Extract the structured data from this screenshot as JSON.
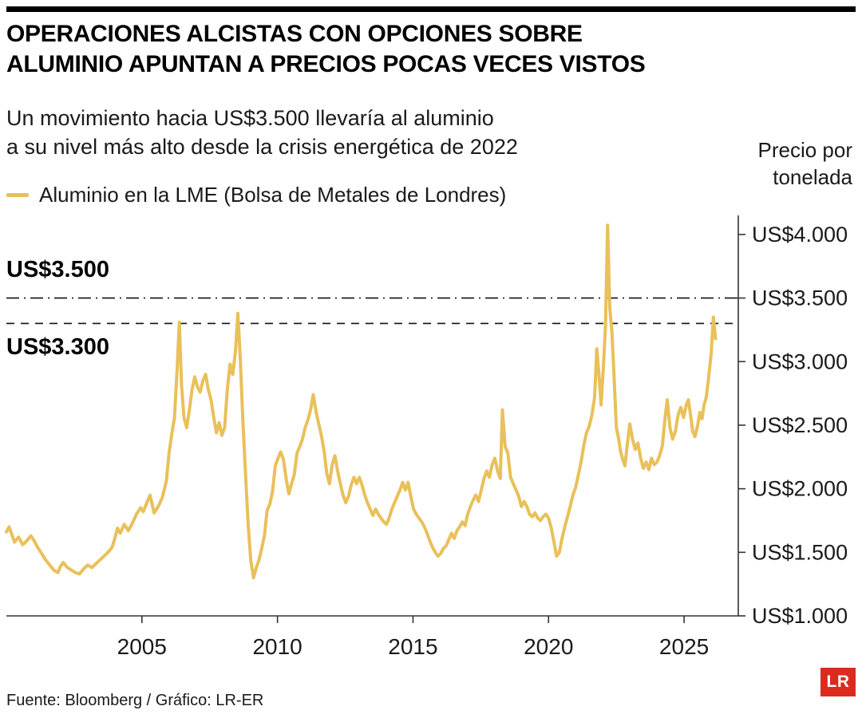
{
  "header": {
    "title": "OPERACIONES ALCISTAS CON OPCIONES SOBRE\nALUMINIO APUNTAN A PRECIOS POCAS VECES VISTOS",
    "subtitle": "Un movimiento hacia US$3.500 llevaría al aluminio\na su nivel más alto desde la crisis energética de 2022"
  },
  "legend": {
    "label": "Aluminio en la LME (Bolsa de Metales de Londres)",
    "color": "#E9C05A"
  },
  "footer": {
    "source": "Fuente: Bloomberg / Gráfico: LR-ER",
    "logo": "LR",
    "logo_color": "#DD2A1F"
  },
  "chart_data": {
    "type": "line",
    "title": "Operaciones alcistas con opciones sobre aluminio apuntan a precios pocas veces vistos",
    "xlabel": "",
    "ylabel": "Precio por\ntonelada",
    "xlim": [
      2000,
      2027
    ],
    "ylim": [
      1000,
      4150
    ],
    "grid": false,
    "legend_position": "top-left",
    "x_ticks": [
      {
        "value": 2005,
        "label": "2005"
      },
      {
        "value": 2010,
        "label": "2010"
      },
      {
        "value": 2015,
        "label": "2015"
      },
      {
        "value": 2020,
        "label": "2020"
      },
      {
        "value": 2025,
        "label": "2025"
      }
    ],
    "y_ticks": [
      {
        "value": 4000,
        "label": "US$4.000"
      },
      {
        "value": 3500,
        "label": "US$3.500"
      },
      {
        "value": 3000,
        "label": "US$3.000"
      },
      {
        "value": 2500,
        "label": "US$2.500"
      },
      {
        "value": 2000,
        "label": "US$2.000"
      },
      {
        "value": 1500,
        "label": "US$1.500"
      },
      {
        "value": 1000,
        "label": "US$1.000"
      }
    ],
    "ref_lines": [
      {
        "value": 3500,
        "label": "US$3.500",
        "style": "dashdot"
      },
      {
        "value": 3300,
        "label": "US$3.300",
        "style": "dashed"
      }
    ],
    "series": [
      {
        "name": "Aluminio en la LME",
        "color": "#E9C05A",
        "points": [
          [
            2000.0,
            1660
          ],
          [
            2000.1,
            1700
          ],
          [
            2000.2,
            1640
          ],
          [
            2000.3,
            1580
          ],
          [
            2000.45,
            1620
          ],
          [
            2000.6,
            1560
          ],
          [
            2000.75,
            1590
          ],
          [
            2000.9,
            1630
          ],
          [
            2001.0,
            1600
          ],
          [
            2001.15,
            1540
          ],
          [
            2001.3,
            1490
          ],
          [
            2001.45,
            1440
          ],
          [
            2001.6,
            1400
          ],
          [
            2001.75,
            1360
          ],
          [
            2001.9,
            1340
          ],
          [
            2002.0,
            1390
          ],
          [
            2002.1,
            1420
          ],
          [
            2002.25,
            1380
          ],
          [
            2002.4,
            1360
          ],
          [
            2002.55,
            1340
          ],
          [
            2002.7,
            1330
          ],
          [
            2002.85,
            1370
          ],
          [
            2003.0,
            1400
          ],
          [
            2003.15,
            1380
          ],
          [
            2003.3,
            1410
          ],
          [
            2003.45,
            1440
          ],
          [
            2003.6,
            1470
          ],
          [
            2003.75,
            1500
          ],
          [
            2003.9,
            1540
          ],
          [
            2004.0,
            1610
          ],
          [
            2004.1,
            1690
          ],
          [
            2004.2,
            1650
          ],
          [
            2004.35,
            1720
          ],
          [
            2004.5,
            1670
          ],
          [
            2004.65,
            1730
          ],
          [
            2004.8,
            1800
          ],
          [
            2004.95,
            1850
          ],
          [
            2005.05,
            1820
          ],
          [
            2005.2,
            1900
          ],
          [
            2005.3,
            1950
          ],
          [
            2005.45,
            1810
          ],
          [
            2005.6,
            1860
          ],
          [
            2005.75,
            1930
          ],
          [
            2005.9,
            2060
          ],
          [
            2006.0,
            2280
          ],
          [
            2006.1,
            2430
          ],
          [
            2006.2,
            2560
          ],
          [
            2006.3,
            2950
          ],
          [
            2006.38,
            3310
          ],
          [
            2006.46,
            2820
          ],
          [
            2006.55,
            2560
          ],
          [
            2006.65,
            2480
          ],
          [
            2006.75,
            2620
          ],
          [
            2006.85,
            2780
          ],
          [
            2006.95,
            2880
          ],
          [
            2007.05,
            2800
          ],
          [
            2007.15,
            2760
          ],
          [
            2007.25,
            2850
          ],
          [
            2007.35,
            2900
          ],
          [
            2007.45,
            2780
          ],
          [
            2007.55,
            2700
          ],
          [
            2007.65,
            2560
          ],
          [
            2007.75,
            2440
          ],
          [
            2007.85,
            2520
          ],
          [
            2007.95,
            2420
          ],
          [
            2008.05,
            2480
          ],
          [
            2008.15,
            2780
          ],
          [
            2008.25,
            2980
          ],
          [
            2008.35,
            2900
          ],
          [
            2008.45,
            3080
          ],
          [
            2008.54,
            3380
          ],
          [
            2008.62,
            3060
          ],
          [
            2008.72,
            2550
          ],
          [
            2008.82,
            2120
          ],
          [
            2008.92,
            1720
          ],
          [
            2009.02,
            1430
          ],
          [
            2009.12,
            1300
          ],
          [
            2009.22,
            1380
          ],
          [
            2009.32,
            1440
          ],
          [
            2009.42,
            1530
          ],
          [
            2009.52,
            1630
          ],
          [
            2009.62,
            1830
          ],
          [
            2009.72,
            1880
          ],
          [
            2009.82,
            1980
          ],
          [
            2009.92,
            2180
          ],
          [
            2010.02,
            2240
          ],
          [
            2010.12,
            2290
          ],
          [
            2010.22,
            2230
          ],
          [
            2010.32,
            2080
          ],
          [
            2010.42,
            1960
          ],
          [
            2010.52,
            2040
          ],
          [
            2010.62,
            2110
          ],
          [
            2010.72,
            2280
          ],
          [
            2010.82,
            2330
          ],
          [
            2010.92,
            2390
          ],
          [
            2011.02,
            2480
          ],
          [
            2011.12,
            2540
          ],
          [
            2011.22,
            2620
          ],
          [
            2011.32,
            2740
          ],
          [
            2011.42,
            2610
          ],
          [
            2011.52,
            2510
          ],
          [
            2011.62,
            2420
          ],
          [
            2011.72,
            2300
          ],
          [
            2011.82,
            2120
          ],
          [
            2011.92,
            2040
          ],
          [
            2012.02,
            2190
          ],
          [
            2012.12,
            2260
          ],
          [
            2012.22,
            2140
          ],
          [
            2012.32,
            2040
          ],
          [
            2012.42,
            1950
          ],
          [
            2012.52,
            1890
          ],
          [
            2012.62,
            1940
          ],
          [
            2012.72,
            2030
          ],
          [
            2012.82,
            2090
          ],
          [
            2012.92,
            2040
          ],
          [
            2013.02,
            2090
          ],
          [
            2013.12,
            2030
          ],
          [
            2013.22,
            1950
          ],
          [
            2013.32,
            1890
          ],
          [
            2013.42,
            1840
          ],
          [
            2013.52,
            1790
          ],
          [
            2013.62,
            1840
          ],
          [
            2013.72,
            1800
          ],
          [
            2013.82,
            1770
          ],
          [
            2013.92,
            1740
          ],
          [
            2014.02,
            1720
          ],
          [
            2014.12,
            1770
          ],
          [
            2014.22,
            1840
          ],
          [
            2014.32,
            1890
          ],
          [
            2014.42,
            1940
          ],
          [
            2014.52,
            1990
          ],
          [
            2014.62,
            2050
          ],
          [
            2014.72,
            1990
          ],
          [
            2014.82,
            2050
          ],
          [
            2014.92,
            1940
          ],
          [
            2015.02,
            1840
          ],
          [
            2015.12,
            1800
          ],
          [
            2015.22,
            1770
          ],
          [
            2015.32,
            1740
          ],
          [
            2015.42,
            1700
          ],
          [
            2015.52,
            1650
          ],
          [
            2015.62,
            1590
          ],
          [
            2015.72,
            1540
          ],
          [
            2015.82,
            1500
          ],
          [
            2015.92,
            1470
          ],
          [
            2016.02,
            1490
          ],
          [
            2016.12,
            1530
          ],
          [
            2016.22,
            1550
          ],
          [
            2016.32,
            1600
          ],
          [
            2016.42,
            1650
          ],
          [
            2016.52,
            1610
          ],
          [
            2016.62,
            1670
          ],
          [
            2016.72,
            1700
          ],
          [
            2016.82,
            1740
          ],
          [
            2016.92,
            1710
          ],
          [
            2017.02,
            1800
          ],
          [
            2017.12,
            1860
          ],
          [
            2017.22,
            1910
          ],
          [
            2017.32,
            1950
          ],
          [
            2017.42,
            1900
          ],
          [
            2017.52,
            1990
          ],
          [
            2017.62,
            2080
          ],
          [
            2017.72,
            2140
          ],
          [
            2017.82,
            2090
          ],
          [
            2017.92,
            2190
          ],
          [
            2018.02,
            2240
          ],
          [
            2018.12,
            2140
          ],
          [
            2018.22,
            2080
          ],
          [
            2018.3,
            2620
          ],
          [
            2018.4,
            2330
          ],
          [
            2018.5,
            2280
          ],
          [
            2018.6,
            2090
          ],
          [
            2018.7,
            2040
          ],
          [
            2018.8,
            1990
          ],
          [
            2018.9,
            1940
          ],
          [
            2019.0,
            1860
          ],
          [
            2019.1,
            1900
          ],
          [
            2019.2,
            1860
          ],
          [
            2019.3,
            1800
          ],
          [
            2019.4,
            1780
          ],
          [
            2019.5,
            1810
          ],
          [
            2019.6,
            1770
          ],
          [
            2019.7,
            1750
          ],
          [
            2019.8,
            1780
          ],
          [
            2019.9,
            1800
          ],
          [
            2020.0,
            1770
          ],
          [
            2020.1,
            1690
          ],
          [
            2020.2,
            1580
          ],
          [
            2020.3,
            1470
          ],
          [
            2020.4,
            1500
          ],
          [
            2020.5,
            1610
          ],
          [
            2020.6,
            1700
          ],
          [
            2020.7,
            1780
          ],
          [
            2020.8,
            1860
          ],
          [
            2020.9,
            1950
          ],
          [
            2021.0,
            2010
          ],
          [
            2021.1,
            2110
          ],
          [
            2021.2,
            2210
          ],
          [
            2021.3,
            2340
          ],
          [
            2021.4,
            2440
          ],
          [
            2021.5,
            2490
          ],
          [
            2021.6,
            2580
          ],
          [
            2021.7,
            2720
          ],
          [
            2021.78,
            3100
          ],
          [
            2021.86,
            2900
          ],
          [
            2021.94,
            2660
          ],
          [
            2022.02,
            2950
          ],
          [
            2022.1,
            3280
          ],
          [
            2022.18,
            4073
          ],
          [
            2022.26,
            3420
          ],
          [
            2022.34,
            3230
          ],
          [
            2022.42,
            2880
          ],
          [
            2022.5,
            2480
          ],
          [
            2022.58,
            2400
          ],
          [
            2022.66,
            2290
          ],
          [
            2022.74,
            2230
          ],
          [
            2022.82,
            2180
          ],
          [
            2022.9,
            2340
          ],
          [
            2023.0,
            2510
          ],
          [
            2023.1,
            2390
          ],
          [
            2023.2,
            2310
          ],
          [
            2023.3,
            2360
          ],
          [
            2023.4,
            2240
          ],
          [
            2023.5,
            2160
          ],
          [
            2023.6,
            2210
          ],
          [
            2023.7,
            2150
          ],
          [
            2023.8,
            2240
          ],
          [
            2023.9,
            2190
          ],
          [
            2024.0,
            2210
          ],
          [
            2024.1,
            2260
          ],
          [
            2024.2,
            2340
          ],
          [
            2024.3,
            2560
          ],
          [
            2024.38,
            2700
          ],
          [
            2024.48,
            2480
          ],
          [
            2024.58,
            2390
          ],
          [
            2024.68,
            2450
          ],
          [
            2024.78,
            2580
          ],
          [
            2024.88,
            2640
          ],
          [
            2024.98,
            2560
          ],
          [
            2025.08,
            2660
          ],
          [
            2025.16,
            2700
          ],
          [
            2025.24,
            2580
          ],
          [
            2025.32,
            2450
          ],
          [
            2025.4,
            2410
          ],
          [
            2025.5,
            2500
          ],
          [
            2025.58,
            2600
          ],
          [
            2025.66,
            2550
          ],
          [
            2025.74,
            2660
          ],
          [
            2025.82,
            2720
          ],
          [
            2025.9,
            2860
          ],
          [
            2026.0,
            3060
          ],
          [
            2026.08,
            3350
          ],
          [
            2026.16,
            3180
          ]
        ]
      }
    ]
  }
}
